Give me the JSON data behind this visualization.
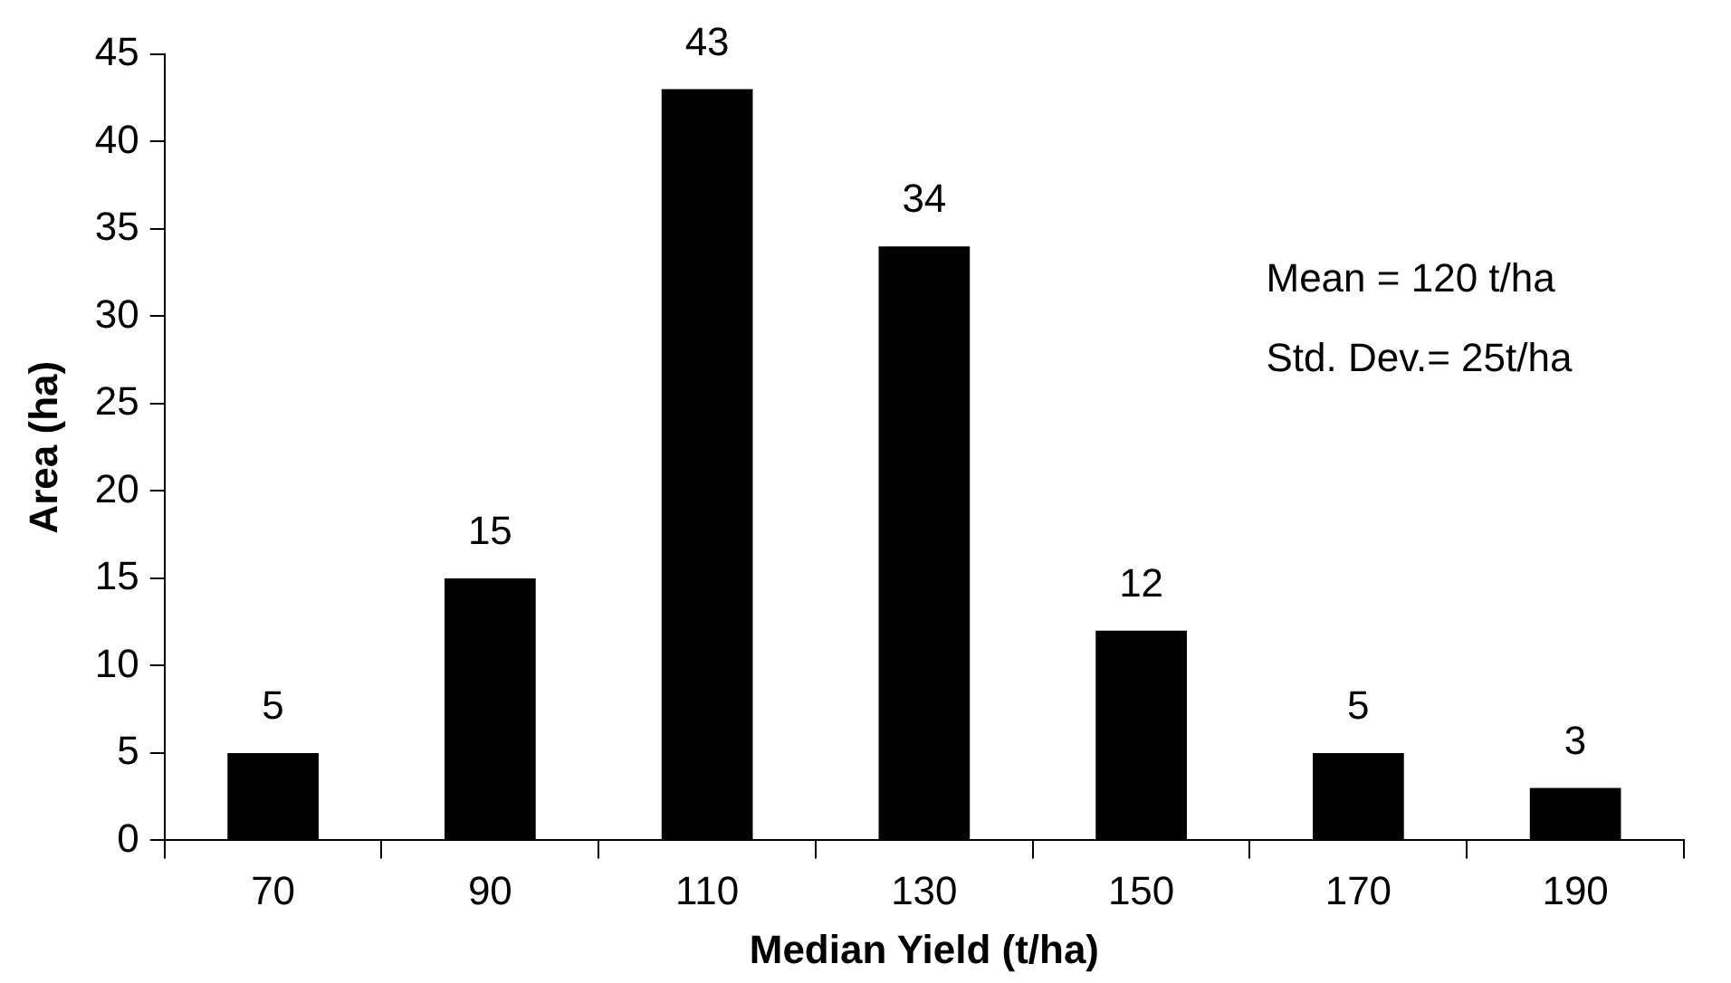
{
  "chart_data": {
    "type": "bar",
    "xlabel": "Median Yield (t/ha)",
    "ylabel": "Area (ha)",
    "categories": [
      "70",
      "90",
      "110",
      "130",
      "150",
      "170",
      "190"
    ],
    "values": [
      5,
      15,
      43,
      34,
      12,
      5,
      3
    ],
    "color": "#000000",
    "ylim": [
      0,
      45
    ],
    "yticks": [
      0,
      5,
      10,
      15,
      20,
      25,
      30,
      35,
      40,
      45
    ],
    "data_labels": true,
    "annotations": [
      "Mean = 120 t/ha",
      "Std. Dev.= 25t/ha"
    ]
  }
}
